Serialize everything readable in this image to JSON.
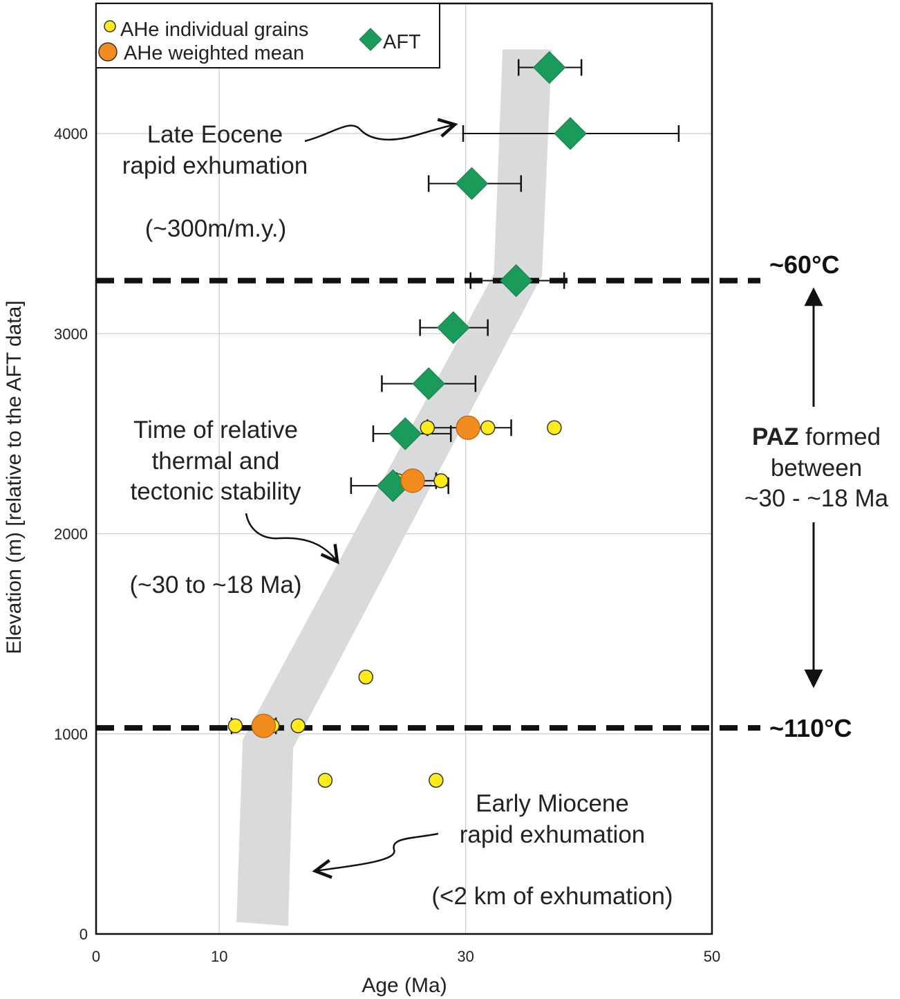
{
  "chart_data": {
    "type": "scatter",
    "xlabel": "Age (Ma)",
    "ylabel": "Elevation (m) [relative to the AFT data]",
    "xlim": [
      0,
      50
    ],
    "ylim": [
      0,
      4650
    ],
    "xticks": [
      0,
      10,
      30,
      50
    ],
    "yticks": [
      0,
      1000,
      2000,
      3000,
      4000
    ],
    "grid": true,
    "legend_position": "top-left",
    "legend": {
      "ahe_grains": "AHe individual grains",
      "ahe_mean": "AHe weighted mean",
      "aft": "AFT"
    },
    "series": [
      {
        "name": "AHe individual grains",
        "marker": "circle",
        "color": "#ffeb1a",
        "points": [
          {
            "x": 11.3,
            "y": 1040
          },
          {
            "x": 14.3,
            "y": 1040
          },
          {
            "x": 16.4,
            "y": 1040
          },
          {
            "x": 18.6,
            "y": 768
          },
          {
            "x": 27.6,
            "y": 768
          },
          {
            "x": 21.9,
            "y": 1284
          },
          {
            "x": 24.5,
            "y": 2265
          },
          {
            "x": 28.0,
            "y": 2265
          },
          {
            "x": 26.9,
            "y": 2530
          },
          {
            "x": 31.8,
            "y": 2530
          },
          {
            "x": 37.2,
            "y": 2530
          }
        ]
      },
      {
        "name": "AHe weighted mean",
        "marker": "circle",
        "color": "#f28c1e",
        "points": [
          {
            "x": 13.6,
            "y": 1040,
            "xerr_low": 11.0,
            "xerr_high": 14.6
          },
          {
            "x": 25.7,
            "y": 2265,
            "xerr_low": 24.4,
            "xerr_high": 27.6
          },
          {
            "x": 30.2,
            "y": 2530,
            "xerr_low": 26.9,
            "xerr_high": 33.7
          }
        ]
      },
      {
        "name": "AFT",
        "marker": "diamond",
        "color": "#1a9b5a",
        "points": [
          {
            "x": 36.8,
            "y": 4330,
            "xerr_low": 34.3,
            "xerr_high": 39.4
          },
          {
            "x": 38.5,
            "y": 4000,
            "xerr_low": 29.8,
            "xerr_high": 47.3
          },
          {
            "x": 30.5,
            "y": 3750,
            "xerr_low": 27.0,
            "xerr_high": 34.5
          },
          {
            "x": 34.1,
            "y": 3265,
            "xerr_low": 30.4,
            "xerr_high": 38.0
          },
          {
            "x": 29.0,
            "y": 3030,
            "xerr_low": 26.3,
            "xerr_high": 31.8
          },
          {
            "x": 27.0,
            "y": 2750,
            "xerr_low": 23.2,
            "xerr_high": 30.8
          },
          {
            "x": 25.1,
            "y": 2500,
            "xerr_low": 22.5,
            "xerr_high": 28.8
          },
          {
            "x": 24.1,
            "y": 2240,
            "xerr_low": 20.7,
            "xerr_high": 28.6
          }
        ]
      }
    ],
    "band": [
      {
        "x": 33.0,
        "y": 4420
      },
      {
        "x": 37.0,
        "y": 4420
      },
      {
        "x": 36.2,
        "y": 3290
      },
      {
        "x": 16.0,
        "y": 930
      },
      {
        "x": 15.6,
        "y": 40
      },
      {
        "x": 11.4,
        "y": 60
      },
      {
        "x": 11.9,
        "y": 970
      },
      {
        "x": 32.3,
        "y": 3300
      }
    ],
    "reference_lines": [
      {
        "y": 3265,
        "label": "~60°C"
      },
      {
        "y": 1030,
        "label": "~110°C"
      }
    ],
    "annotations": {
      "late_eocene_line1": "Late Eocene",
      "late_eocene_line2": "rapid exhumation",
      "late_eocene_rate": "(~300m/m.y.)",
      "stability_line1": "Time of relative",
      "stability_line2": "thermal and",
      "stability_line3": "tectonic stability",
      "stability_range": "(~30 to ~18 Ma)",
      "early_miocene_line1": "Early Miocene",
      "early_miocene_line2": "rapid exhumation",
      "early_miocene_amount": "(<2 km of exhumation)",
      "paz_bold": "PAZ",
      "paz_rest": " formed",
      "paz_line2": "between",
      "paz_line3": "~30 - ~18 Ma"
    },
    "colors": {
      "band": "#d9dadc",
      "grid": "#cccccc",
      "ahe_grain_fill": "#ffeb1a",
      "ahe_mean_fill": "#f28c1e",
      "aft_fill": "#1a9b5a"
    }
  }
}
